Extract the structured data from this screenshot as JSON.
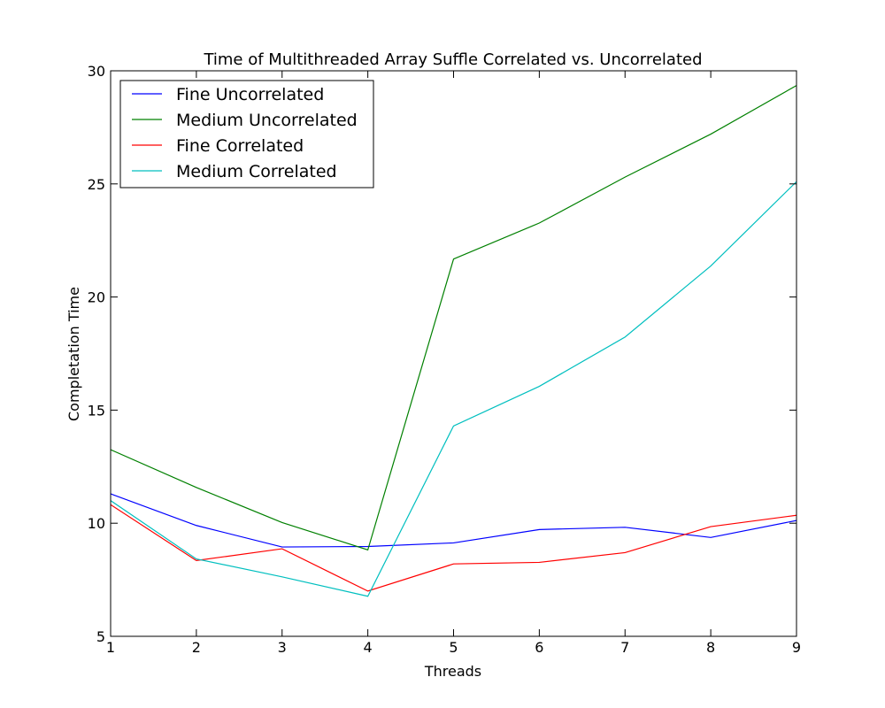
{
  "chart_data": {
    "type": "line",
    "title": "Time of Multithreaded Array Suffle Correlated vs. Uncorrelated",
    "xlabel": "Threads",
    "ylabel": "Completation Time",
    "x": [
      1,
      2,
      3,
      4,
      5,
      6,
      7,
      8,
      9
    ],
    "xlim": [
      1,
      9
    ],
    "ylim": [
      5,
      30
    ],
    "xticks": [
      "1",
      "2",
      "3",
      "4",
      "5",
      "6",
      "7",
      "8",
      "9"
    ],
    "yticks": [
      "5",
      "10",
      "15",
      "20",
      "25",
      "30"
    ],
    "grid": false,
    "legend_position": "top-left",
    "series": [
      {
        "name": "Fine Uncorrelated",
        "color": "#0000ff",
        "values": [
          11.3,
          9.9,
          8.95,
          8.97,
          9.13,
          9.72,
          9.82,
          9.37,
          10.12
        ]
      },
      {
        "name": "Medium Uncorrelated",
        "color": "#008000",
        "values": [
          13.25,
          11.58,
          10.03,
          8.82,
          21.68,
          23.27,
          25.3,
          27.2,
          29.35
        ]
      },
      {
        "name": "Fine Correlated",
        "color": "#ff0000",
        "values": [
          10.82,
          8.35,
          8.87,
          7.0,
          8.2,
          8.27,
          8.7,
          9.85,
          10.35
        ]
      },
      {
        "name": "Medium Correlated",
        "color": "#00bfbf",
        "values": [
          11.0,
          8.42,
          7.63,
          6.77,
          14.3,
          16.05,
          18.23,
          21.37,
          25.1
        ]
      }
    ]
  }
}
